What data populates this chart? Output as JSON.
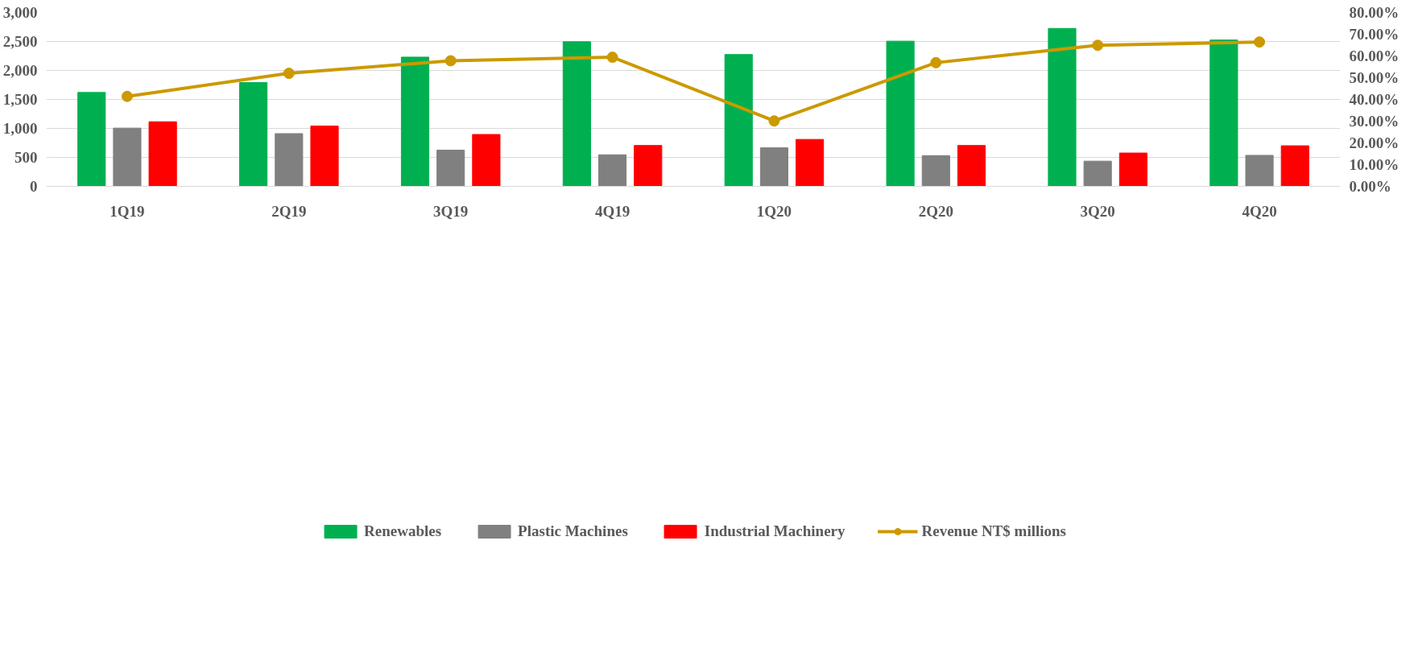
{
  "chart_data": {
    "type": "bar",
    "categories": [
      "1Q19",
      "2Q19",
      "3Q19",
      "4Q19",
      "1Q20",
      "2Q20",
      "3Q20",
      "4Q20"
    ],
    "series": [
      {
        "name": "Renewables",
        "color": "#00b050",
        "values": [
          1620,
          1790,
          2230,
          2495,
          2275,
          2505,
          2725,
          2525
        ]
      },
      {
        "name": "Plastic Machines",
        "color": "#808080",
        "values": [
          1005,
          910,
          625,
          545,
          665,
          530,
          435,
          535
        ]
      },
      {
        "name": "Industrial Machinery",
        "color": "#ff0000",
        "values": [
          1115,
          1040,
          895,
          705,
          810,
          705,
          575,
          700
        ]
      },
      {
        "name": "Revenue NT$ millions",
        "type": "line",
        "axis": "y2",
        "color": "#cc9900",
        "marker": "circle",
        "values": [
          41.4,
          52.0,
          57.8,
          59.4,
          30.1,
          56.9,
          64.9,
          66.4
        ]
      }
    ],
    "ylim": [
      0,
      3000
    ],
    "yticks": [
      0,
      {
        "value": 500,
        "label": "500"
      },
      {
        "value": 1000,
        "label": "1,000"
      },
      {
        "value": 1500,
        "label": "1,500"
      },
      {
        "value": 2000,
        "label": "2,000"
      },
      {
        "value": 2500,
        "label": "2,500"
      },
      {
        "value": 3000,
        "label": "3,000"
      }
    ],
    "y2lim": [
      0,
      80
    ],
    "y2ticks": [
      {
        "value": 0,
        "label": "0.00%"
      },
      {
        "value": 10,
        "label": "10.00%"
      },
      {
        "value": 20,
        "label": "20.00%"
      },
      {
        "value": 30,
        "label": "30.00%"
      },
      {
        "value": 40,
        "label": "40.00%"
      },
      {
        "value": 50,
        "label": "50.00%"
      },
      {
        "value": 60,
        "label": "60.00%"
      },
      {
        "value": 70,
        "label": "70.00%"
      },
      {
        "value": 80,
        "label": "80.00%"
      }
    ],
    "grid": "y",
    "legend": "bottom"
  }
}
